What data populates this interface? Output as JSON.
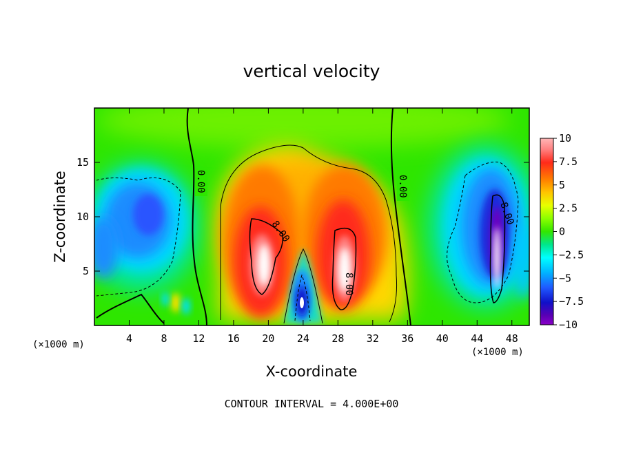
{
  "chart_data": {
    "type": "heatmap",
    "title": "vertical velocity",
    "xlabel": "X-coordinate",
    "ylabel": "Z-coordinate",
    "x_unit_left": "(×1000 m)",
    "x_unit_right": "(×1000 m)",
    "xlim": [
      0,
      50
    ],
    "ylim": [
      0,
      20
    ],
    "xticks": [
      4,
      8,
      12,
      16,
      20,
      24,
      28,
      32,
      36,
      40,
      44,
      48
    ],
    "yticks": [
      5,
      10,
      15
    ],
    "colorbar": {
      "ticks": [
        10,
        7.5,
        5,
        2.5,
        0,
        -2.5,
        -5,
        -7.5,
        -10
      ],
      "tick_labels": [
        "10",
        "7.5",
        "5",
        "2.5",
        "0",
        "−2.5",
        "−5",
        "−7.5",
        "−10"
      ],
      "range": [
        -10,
        10
      ]
    },
    "contour_interval_text": "CONTOUR INTERVAL = 4.000E+00",
    "contour_labels": [
      "0.00",
      "0.00",
      "8.00",
      "8.00",
      "8.00"
    ],
    "features": [
      {
        "kind": "updraft",
        "x": 19.5,
        "z": 6.0,
        "peak": 10
      },
      {
        "kind": "updraft",
        "x": 29.0,
        "z": 5.5,
        "peak": 10
      },
      {
        "kind": "updraft",
        "x": 24.0,
        "z": 2.0,
        "peak": 10
      },
      {
        "kind": "downdraft",
        "x": 24.0,
        "z": 2.2,
        "peak": -8
      },
      {
        "kind": "downdraft",
        "x": 46.3,
        "z": 6.0,
        "peak": -10
      },
      {
        "kind": "downdraft",
        "x": 5.5,
        "z": 9.5,
        "peak": -5
      }
    ]
  }
}
